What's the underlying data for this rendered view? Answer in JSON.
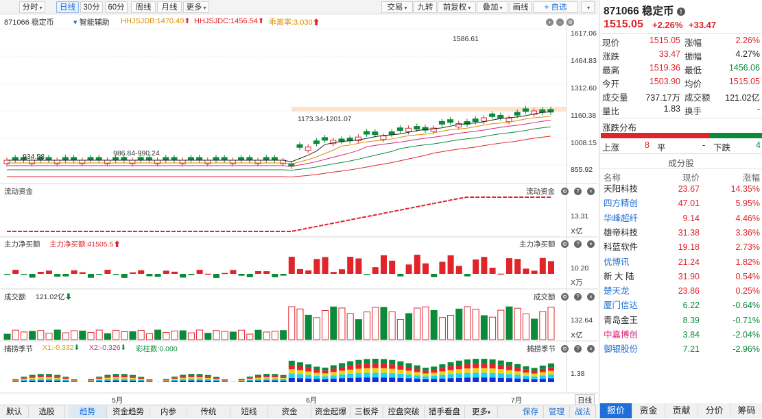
{
  "toolbar": {
    "left": [
      {
        "label": "分时",
        "arrow": true
      },
      {
        "label": "日线",
        "active": true
      },
      {
        "label": "30分"
      },
      {
        "label": "60分"
      },
      {
        "label": "周线"
      },
      {
        "label": "月线"
      },
      {
        "label": "更多",
        "arrow": true
      }
    ],
    "right": [
      {
        "label": "交易",
        "arrow": true
      },
      {
        "label": "九转"
      },
      {
        "label": "前复权",
        "arrow": true
      },
      {
        "label": "叠加",
        "arrow": true
      },
      {
        "label": "画线"
      },
      {
        "label": "+ 自选",
        "arrow": true
      }
    ]
  },
  "main_chart": {
    "code_name": "871066 稳定币",
    "assist": "智能辅助",
    "ind1": "HHJSJDB:1470.49",
    "ind2": "HHJSJDC:1456.54",
    "ind3": "乖离率:3.030",
    "y_labels": [
      "1617.06",
      "1464.83",
      "1312.60",
      "1160.38",
      "1008.15",
      "855.92"
    ],
    "high_label": "1586.61",
    "mid_label": "1173.34-1201.07",
    "low_label1": "986.84-990.24",
    "low_label2": "934.58"
  },
  "panels": {
    "liudong": {
      "title": "流动资金",
      "right_title": "流动资金",
      "axis": "13.31",
      "unit": "X亿"
    },
    "zhuli": {
      "title": "主力净买额",
      "value": "主力净买额:41505.5",
      "right_title": "主力净买额",
      "axis": "10.20",
      "unit": "X万"
    },
    "chengjiao": {
      "title": "成交额",
      "value": "121.02亿",
      "right_title": "成交额",
      "axis": "132.64",
      "unit": "X亿"
    },
    "buolao": {
      "title": "捕捞季节",
      "x1": "X1:-0.332",
      "x2": "X2:-0.326",
      "caizhu": "彩柱数:0.000",
      "right_title": "捕捞季节",
      "axis": "1.38"
    }
  },
  "x_axis": {
    "months": [
      "5月",
      "6月",
      "7月"
    ],
    "period": "日线"
  },
  "bottombar": [
    "默认",
    "选股",
    "趋势",
    "资金趋势",
    "内参",
    "传统",
    "短线",
    "资金",
    "资金起爆",
    "三板斧",
    "控盘突破",
    "猎手看盘",
    "更多",
    "保存",
    "管理",
    "战法"
  ],
  "quote": {
    "title": "871066 稳定币",
    "price": "1515.05",
    "pct": "+2.26%",
    "chg": "+33.47",
    "rows": [
      {
        "l1": "现价",
        "v1": "1515.05",
        "c1": "red",
        "l2": "涨幅",
        "v2": "2.26%",
        "c2": "red"
      },
      {
        "l1": "涨跌",
        "v1": "33.47",
        "c1": "red",
        "l2": "振幅",
        "v2": "4.27%",
        "c2": "black"
      },
      {
        "l1": "最高",
        "v1": "1519.36",
        "c1": "red",
        "l2": "最低",
        "v2": "1456.06",
        "c2": "green"
      },
      {
        "l1": "今开",
        "v1": "1503.90",
        "c1": "red",
        "l2": "均价",
        "v2": "1515.05",
        "c2": "red"
      },
      {
        "l1": "成交量",
        "v1": "737.17万",
        "c1": "black",
        "l2": "成交额",
        "v2": "121.02亿",
        "c2": "black"
      },
      {
        "l1": "量比",
        "v1": "1.83",
        "c1": "black",
        "l2": "换手",
        "v2": "-",
        "c2": "black"
      }
    ],
    "dist_title": "涨跌分布",
    "up_label": "上涨",
    "up": "8",
    "flat_label": "平",
    "flat": "-",
    "down_label": "下跌",
    "down": "4",
    "comp_title": "成分股",
    "comp_headers": [
      "名称",
      "现价",
      "涨幅"
    ],
    "components": [
      {
        "name": "天阳科技",
        "price": "23.67",
        "pct": "14.35%",
        "nc": "black",
        "pc": "red"
      },
      {
        "name": "四方精创",
        "price": "47.01",
        "pct": "5.95%",
        "nc": "blue",
        "pc": "red"
      },
      {
        "name": "华峰超纤",
        "price": "9.14",
        "pct": "4.46%",
        "nc": "blue",
        "pc": "red"
      },
      {
        "name": "雄帝科技",
        "price": "31.38",
        "pct": "3.36%",
        "nc": "black",
        "pc": "red"
      },
      {
        "name": "科蓝软件",
        "price": "19.18",
        "pct": "2.73%",
        "nc": "black",
        "pc": "red"
      },
      {
        "name": "优博讯",
        "price": "21.24",
        "pct": "1.82%",
        "nc": "blue",
        "pc": "red"
      },
      {
        "name": "新 大 陆",
        "price": "31.90",
        "pct": "0.54%",
        "nc": "black",
        "pc": "red"
      },
      {
        "name": "楚天龙",
        "price": "23.86",
        "pct": "0.25%",
        "nc": "blue",
        "pc": "red"
      },
      {
        "name": "厦门信达",
        "price": "6.22",
        "pct": "-0.64%",
        "nc": "blue",
        "pc": "green"
      },
      {
        "name": "青岛金王",
        "price": "8.39",
        "pct": "-0.71%",
        "nc": "black",
        "pc": "green"
      },
      {
        "name": "中嘉博创",
        "price": "3.84",
        "pct": "-2.04%",
        "nc": "purple",
        "pc": "green"
      },
      {
        "name": "御银股份",
        "price": "7.21",
        "pct": "-2.96%",
        "nc": "blue",
        "pc": "green"
      }
    ],
    "tabs": [
      "报价",
      "资金",
      "贡献",
      "分价",
      "筹码"
    ]
  },
  "colors": {
    "up": "#e0242a",
    "down": "#0b8a3a",
    "accent": "#1e6fd9"
  }
}
